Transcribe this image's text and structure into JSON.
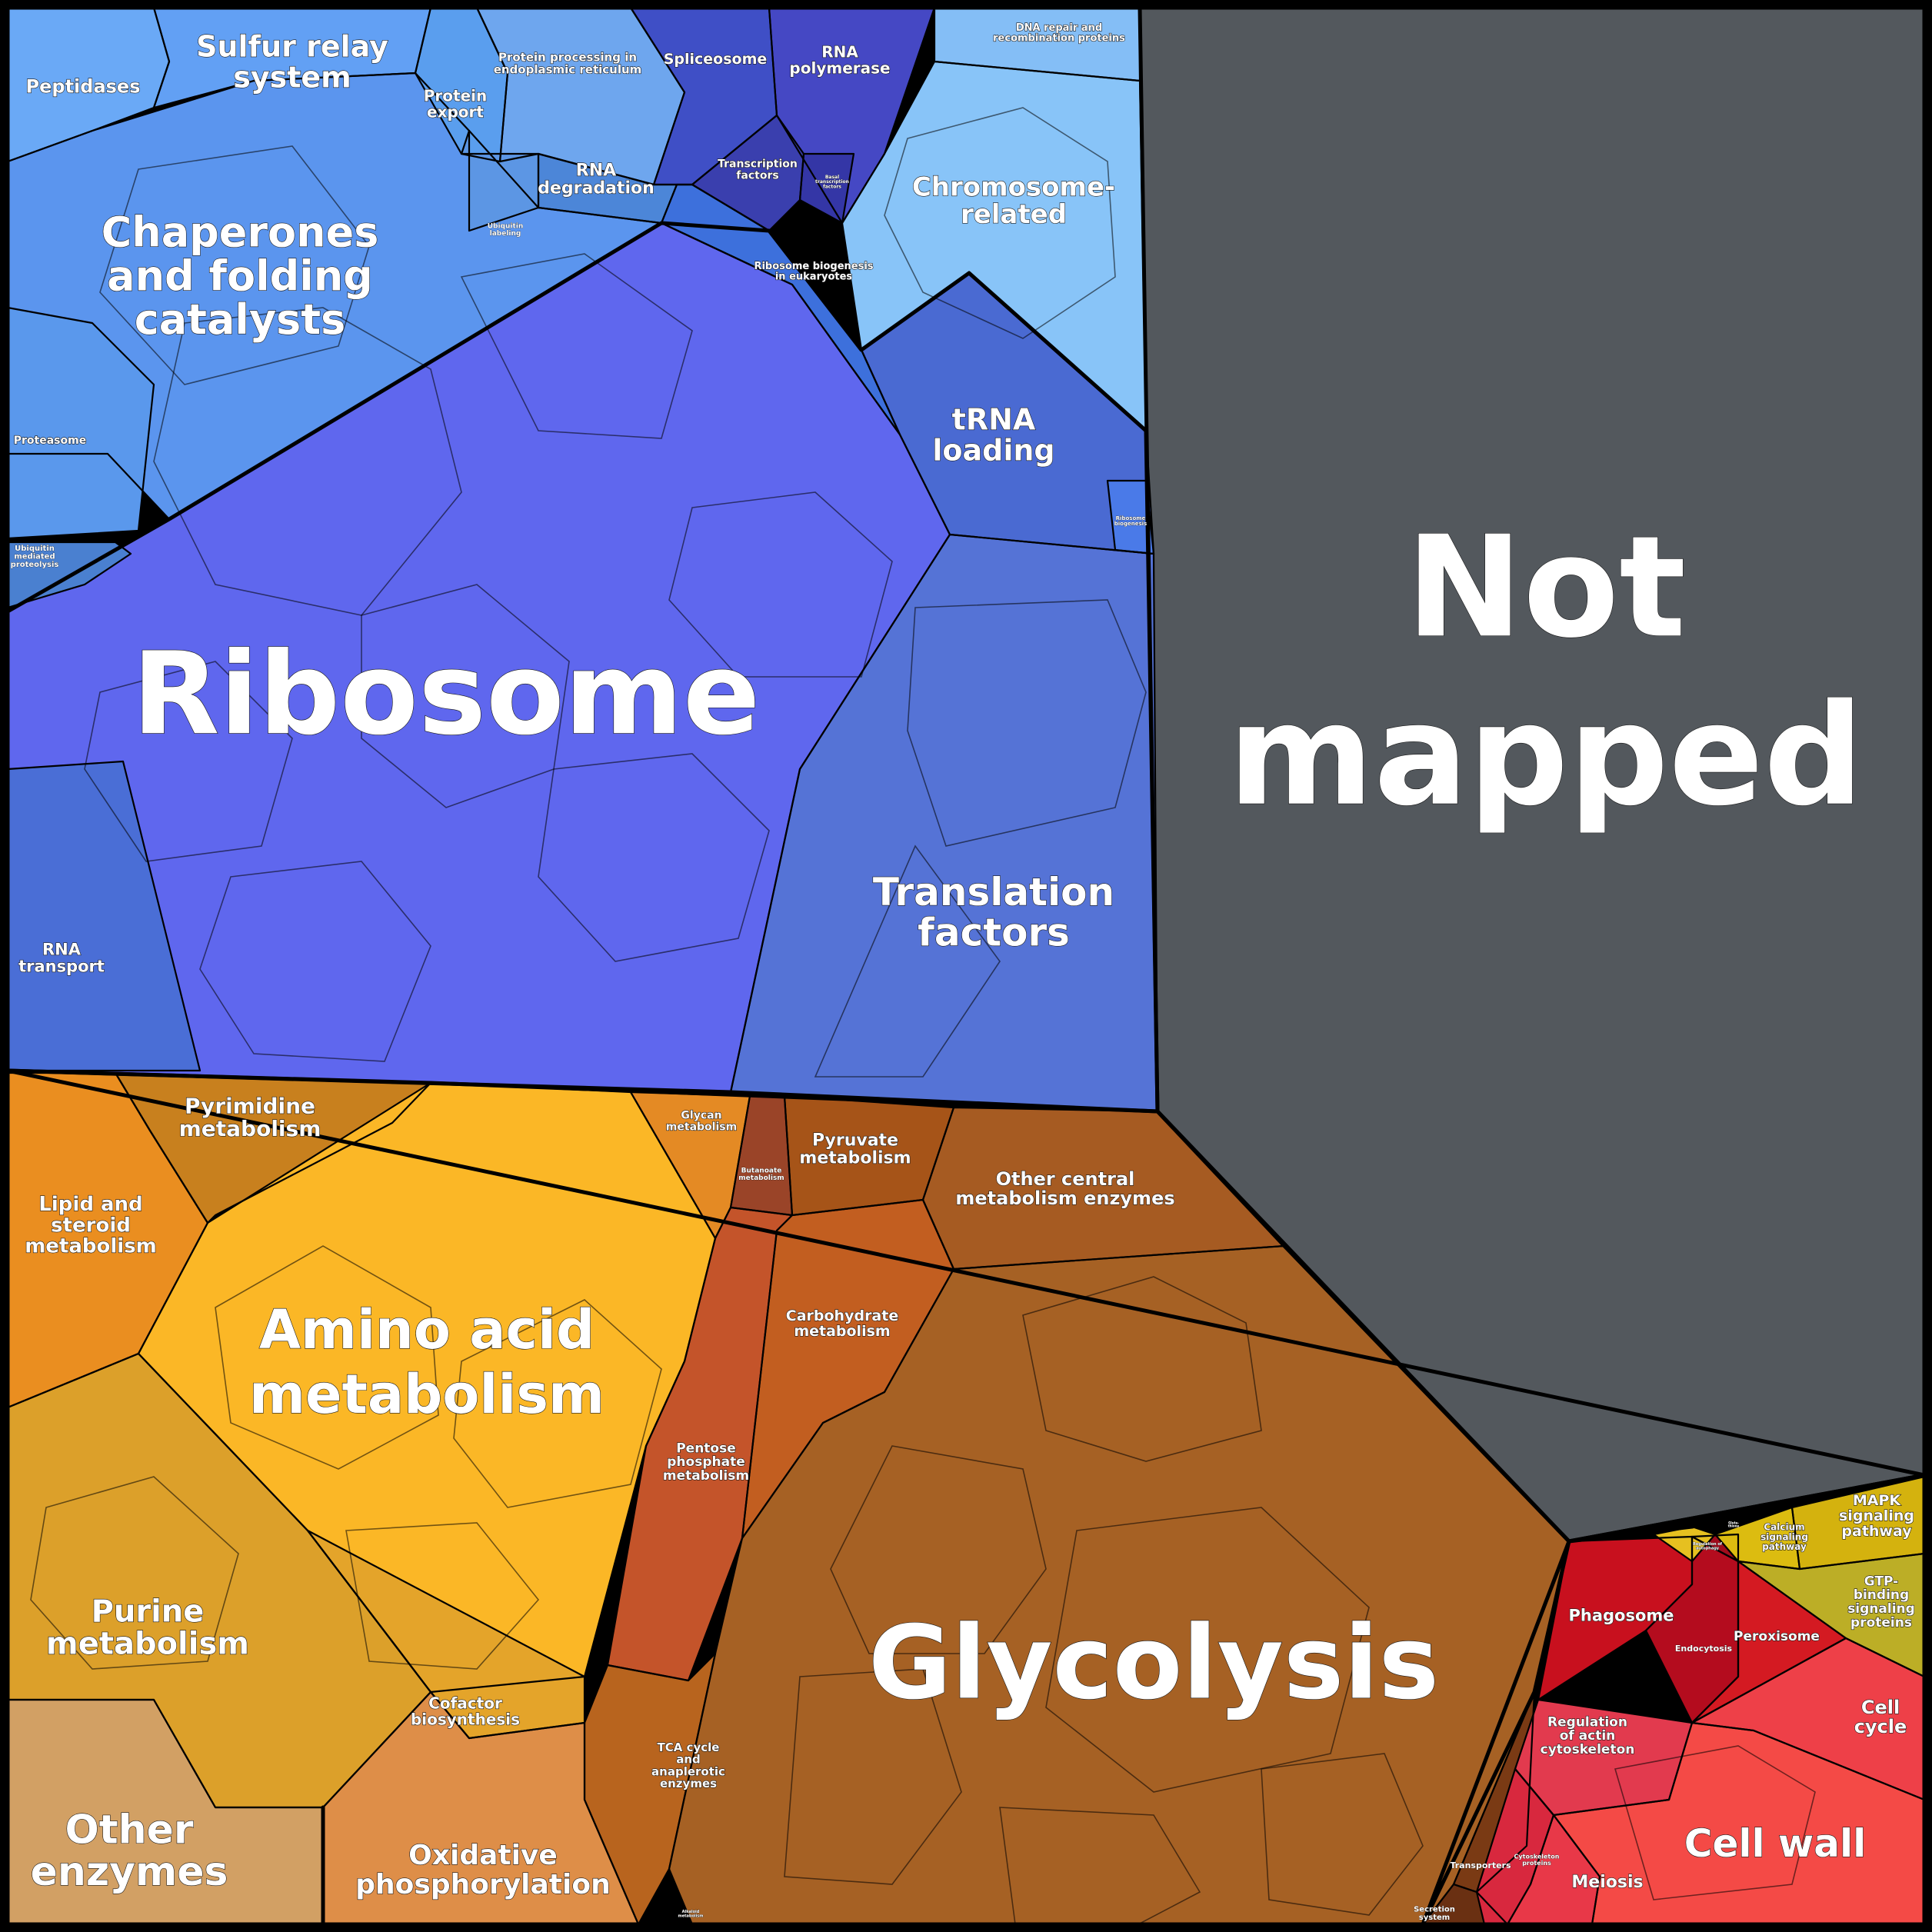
{
  "groups": {
    "not_mapped": {
      "label": [
        "Not",
        "mapped"
      ],
      "color": "#53585d"
    },
    "ribosome": {
      "label": [
        "Ribosome"
      ],
      "color": "#5f67ee"
    },
    "glycolysis": {
      "label": [
        "Glycolysis"
      ],
      "color": "#a66124"
    },
    "translation_factors": {
      "label": [
        "Translation",
        "factors"
      ],
      "color": "#5573d6"
    },
    "trna_loading": {
      "label": [
        "tRNA",
        "loading"
      ],
      "color": "#4a6ad2"
    },
    "chaperones": {
      "label": [
        "Chaperones",
        "and folding",
        "catalysts"
      ],
      "color": "#5b95ee"
    },
    "sulfur_relay": {
      "label": [
        "Sulfur relay",
        "system"
      ],
      "color": "#62a0f4"
    },
    "peptidases": {
      "label": [
        "Peptidases"
      ],
      "color": "#6aa9f6"
    },
    "protein_export": {
      "label": [
        "Protein",
        "export"
      ],
      "color": "#5a9eee"
    },
    "protein_processing_er": {
      "label": [
        "Protein processing in",
        "endoplasmic reticulum"
      ],
      "color": "#6ea6ee"
    },
    "rna_degradation": {
      "label": [
        "RNA",
        "degradation"
      ],
      "color": "#4c86d8"
    },
    "ubiquitin_labeling": {
      "label": [
        "Ubiquitin",
        "labeling"
      ],
      "color": "#5c96e4"
    },
    "proteasome": {
      "label": [
        "Proteasome"
      ],
      "color": "#5a98ec"
    },
    "ubiquitin_proteolysis": {
      "label": [
        "Ubiquitin",
        "mediated",
        "proteolysis"
      ],
      "color": "#4a80d0"
    },
    "rna_transport": {
      "label": [
        "RNA",
        "transport"
      ],
      "color": "#4a6ed6"
    },
    "spliceosome": {
      "label": [
        "Spliceosome"
      ],
      "color": "#3f4fc6"
    },
    "rna_polymerase": {
      "label": [
        "RNA",
        "polymerase"
      ],
      "color": "#4548c4"
    },
    "transcription_factors": {
      "label": [
        "Transcription",
        "factors"
      ],
      "color": "#3a3fae"
    },
    "basal_transcription_factors": {
      "label": [
        "Basal",
        "transcription",
        "factors"
      ],
      "color": "#3436a6"
    },
    "ribosome_biogenesis_eukaryotes": {
      "label": [
        "Ribosome biogenesis",
        "in eukaryotes"
      ],
      "color": "#3d70dc"
    },
    "ribosome_biogenesis": {
      "label": [
        "Ribosome",
        "biogenesis"
      ],
      "color": "#4a7ae8"
    },
    "dna_repair": {
      "label": [
        "DNA repair and",
        "recombination proteins"
      ],
      "color": "#84bef6"
    },
    "chromosome_related": {
      "label": [
        "Chromosome-",
        "related"
      ],
      "color": "#88c4f8"
    },
    "pyrimidine_metabolism": {
      "label": [
        "Pyrimidine",
        "metabolism"
      ],
      "color": "#c8801e"
    },
    "lipid_steroid": {
      "label": [
        "Lipid and",
        "steroid",
        "metabolism"
      ],
      "color": "#ea8e20"
    },
    "amino_acid": {
      "label": [
        "Amino acid",
        "metabolism"
      ],
      "color": "#fbb726"
    },
    "glycan_metabolism": {
      "label": [
        "Glycan",
        "metabolism"
      ],
      "color": "#e48a24"
    },
    "butanoate_metabolism": {
      "label": [
        "Butanoate",
        "metabolism"
      ],
      "color": "#9a4428"
    },
    "pyruvate_metabolism": {
      "label": [
        "Pyruvate",
        "metabolism"
      ],
      "color": "#a65418"
    },
    "other_central": {
      "label": [
        "Other central",
        "metabolism enzymes"
      ],
      "color": "#a65b22"
    },
    "carbohydrate_metabolism": {
      "label": [
        "Carbohydrate",
        "metabolism"
      ],
      "color": "#c25e20"
    },
    "pentose_phosphate": {
      "label": [
        "Pentose",
        "phosphate",
        "metabolism"
      ],
      "color": "#c4542a"
    },
    "purine_metabolism": {
      "label": [
        "Purine",
        "metabolism"
      ],
      "color": "#dca02a"
    },
    "cofactor_biosynthesis": {
      "label": [
        "Cofactor",
        "biosynthesis"
      ],
      "color": "#e4a42a"
    },
    "tca_cycle": {
      "label": [
        "TCA cycle",
        "and",
        "anaplerotic",
        "enzymes"
      ],
      "color": "#b8641e"
    },
    "other_enzymes": {
      "label": [
        "Other",
        "enzymes"
      ],
      "color": "#d2a064"
    },
    "oxidative_phosphorylation": {
      "label": [
        "Oxidative",
        "phosphorylation"
      ],
      "color": "#de8e48"
    },
    "alkaloid_metabolism": {
      "label": [
        "Alkaloid",
        "metabolism"
      ],
      "color": "#c7702e"
    },
    "transporters": {
      "label": [
        "Transporters"
      ],
      "color": "#7a3a14"
    },
    "secretion_system": {
      "label": [
        "Secretion",
        "system"
      ],
      "color": "#6a3012"
    },
    "phagosome": {
      "label": [
        "Phagosome"
      ],
      "color": "#c8101e"
    },
    "endocytosis": {
      "label": [
        "Endocytosis"
      ],
      "color": "#b40c1e"
    },
    "peroxisome": {
      "label": [
        "Peroxisome"
      ],
      "color": "#d41a22"
    },
    "regulation_autophagy": {
      "label": [
        "Regulation of",
        "autophagy"
      ],
      "color": "#a00c1c"
    },
    "regulation_actin": {
      "label": [
        "Regulation",
        "of actin",
        "cytoskeleton"
      ],
      "color": "#e23a4e"
    },
    "cytoskeleton_proteins": {
      "label": [
        "Cytoskeleton",
        "proteins"
      ],
      "color": "#d8283e"
    },
    "meiosis": {
      "label": [
        "Meiosis"
      ],
      "color": "#e83848"
    },
    "cell_cycle": {
      "label": [
        "Cell",
        "cycle"
      ],
      "color": "#ee4048"
    },
    "cell_wall": {
      "label": [
        "Cell wall"
      ],
      "color": "#f44a46"
    },
    "calcium_signaling": {
      "label": [
        "Calcium",
        "signaling",
        "pathway"
      ],
      "color": "#dcbc10"
    },
    "mapk_signaling": {
      "label": [
        "MAPK",
        "signaling",
        "pathway"
      ],
      "color": "#d4b20e"
    },
    "gtp_binding": {
      "label": [
        "GTP-",
        "binding",
        "signaling",
        "proteins"
      ],
      "color": "#bcae26"
    },
    "tiny_misc": {
      "label": [
        "Gluta-",
        "thione"
      ],
      "color": "#e6c020"
    }
  }
}
